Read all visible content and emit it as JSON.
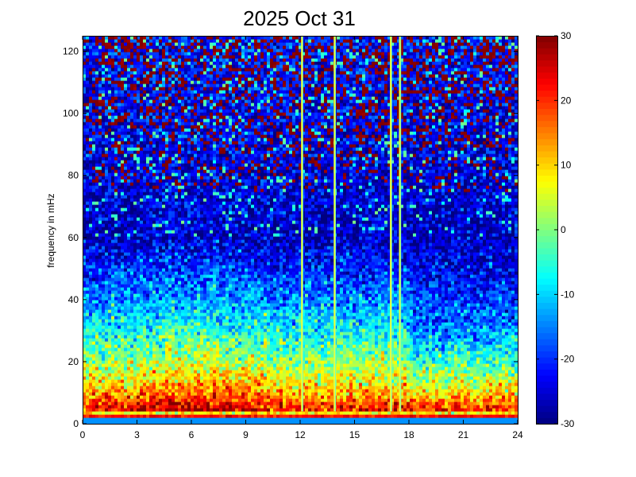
{
  "chart_data": {
    "type": "heatmap",
    "title": "2025 Oct 31",
    "xlabel": "",
    "ylabel": "frequency in mHz",
    "xlim": [
      0,
      24
    ],
    "ylim": [
      0,
      125
    ],
    "x_ticks": [
      "0",
      "3",
      "6",
      "9",
      "12",
      "15",
      "18",
      "21",
      "24"
    ],
    "y_ticks": [
      "0",
      "20",
      "40",
      "60",
      "80",
      "100",
      "120"
    ],
    "colorbar": {
      "range": [
        -30,
        30
      ],
      "ticks": [
        "30",
        "20",
        "10",
        "0",
        "-10",
        "-20",
        "-30"
      ],
      "colormap": "jet"
    },
    "grid": false,
    "vertical_lines_hours": [
      12.1,
      13.9,
      17.0,
      17.5
    ],
    "description_values": {
      "low_freq_band_mHz": [
        0,
        20
      ],
      "low_freq_level": 25,
      "high_freq_level": -20,
      "noise_floor_high_freq_mHz": [
        80,
        125
      ],
      "noise_floor_level": 30
    }
  }
}
